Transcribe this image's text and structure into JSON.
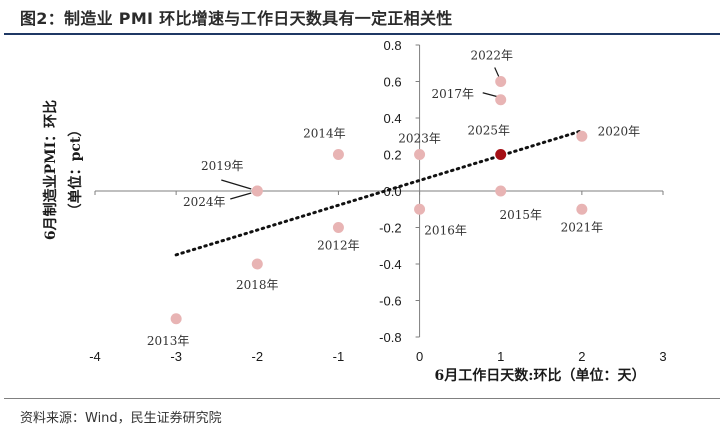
{
  "title": "图2：制造业 PMI 环比增速与工作日天数具有一定正相关性",
  "source": "资料来源：Wind，民生证券研究院",
  "chart_data": {
    "type": "scatter",
    "xlabel": "6月工作日天数:环比（单位：天）",
    "ylabel": "6月制造业PMI：环比",
    "ylabel2": "（单位：pct）",
    "xlim": [
      -4,
      3
    ],
    "ylim": [
      -0.8,
      0.8
    ],
    "xticks": [
      -4,
      -3,
      -2,
      -1,
      0,
      1,
      2,
      3
    ],
    "yticks": [
      -0.8,
      -0.6,
      -0.4,
      -0.2,
      0.0,
      0.2,
      0.4,
      0.6,
      0.8
    ],
    "ytick_labels": [
      "-0.8",
      "-0.6",
      "-0.4",
      "-0.2",
      "0.0",
      "0.2",
      "0.4",
      "0.6",
      "0.8"
    ],
    "grid": false,
    "points": [
      {
        "label": "2012年",
        "x": -1,
        "y": -0.2
      },
      {
        "label": "2013年",
        "x": -3,
        "y": -0.7
      },
      {
        "label": "2014年",
        "x": -1,
        "y": 0.2
      },
      {
        "label": "2015年",
        "x": 1,
        "y": 0.0
      },
      {
        "label": "2016年",
        "x": 0,
        "y": -0.1
      },
      {
        "label": "2017年",
        "x": 1,
        "y": 0.5
      },
      {
        "label": "2018年",
        "x": -2,
        "y": -0.4
      },
      {
        "label": "2019年",
        "x": -2,
        "y": 0.0
      },
      {
        "label": "2020年",
        "x": 2,
        "y": 0.3
      },
      {
        "label": "2021年",
        "x": 2,
        "y": -0.1
      },
      {
        "label": "2022年",
        "x": 1,
        "y": 0.6
      },
      {
        "label": "2023年",
        "x": 0,
        "y": 0.2
      },
      {
        "label": "2024年",
        "x": -2,
        "y": 0.0
      },
      {
        "label": "2025年",
        "x": 1,
        "y": 0.2,
        "highlight": true
      }
    ],
    "trendline": {
      "style": "dotted",
      "x": [
        -3,
        2
      ],
      "y": [
        -0.35,
        0.33
      ]
    },
    "colors": {
      "point": "#e8b4b4",
      "highlight": "#a50f15",
      "trend": "#111111",
      "axis": "#7f7f7f"
    }
  }
}
